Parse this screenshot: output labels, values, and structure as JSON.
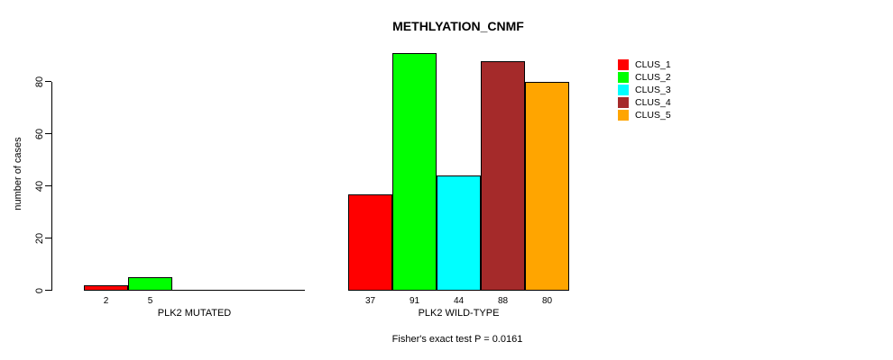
{
  "chart_data": {
    "type": "bar",
    "title": "METHLYATION_CNMF",
    "ylabel": "number of cases",
    "xlabel": "",
    "yticks": [
      0,
      20,
      40,
      60,
      80
    ],
    "ylim": [
      0,
      92
    ],
    "grid": false,
    "legend_position": "top-right",
    "categories": [
      "PLK2 MUTATED",
      "PLK2 WILD-TYPE"
    ],
    "series": [
      {
        "name": "CLUS_1",
        "color": "#ff0000",
        "values": [
          2,
          37
        ]
      },
      {
        "name": "CLUS_2",
        "color": "#00ff00",
        "values": [
          5,
          91
        ]
      },
      {
        "name": "CLUS_3",
        "color": "#00ffff",
        "values": [
          null,
          44
        ]
      },
      {
        "name": "CLUS_4",
        "color": "#a52a2a",
        "values": [
          null,
          88
        ]
      },
      {
        "name": "CLUS_5",
        "color": "#ffa500",
        "values": [
          null,
          80
        ]
      }
    ],
    "bar_value_labels": [
      [
        "2",
        "5"
      ],
      [
        "37",
        "91",
        "44",
        "88",
        "80"
      ]
    ],
    "annotation": "Fisher's exact test P = 0.0161"
  }
}
